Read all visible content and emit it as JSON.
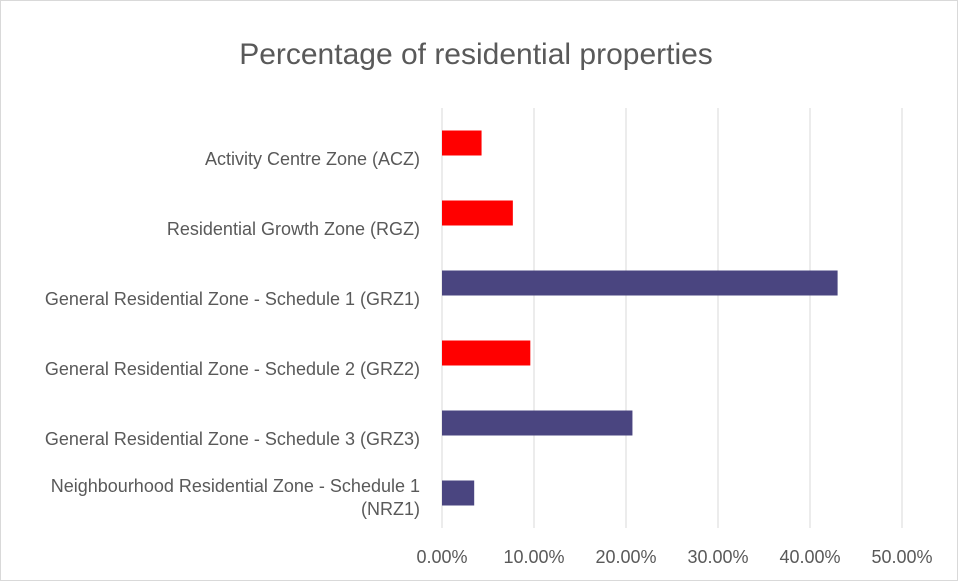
{
  "chart_data": {
    "type": "bar",
    "orientation": "horizontal",
    "title": "Percentage of residential properties",
    "categories": [
      "Activity Centre Zone (ACZ)",
      "Residential Growth Zone (RGZ)",
      "General Residential Zone - Schedule 1 (GRZ1)",
      "General Residential Zone - Schedule 2 (GRZ2)",
      "General Residential Zone - Schedule 3 (GRZ3)",
      "Neighbourhood Residential Zone - Schedule 1 (NRZ1)"
    ],
    "values": [
      4.3,
      7.7,
      43.0,
      9.6,
      20.7,
      3.5
    ],
    "colors": [
      "#ff0000",
      "#ff0000",
      "#4a4580",
      "#ff0000",
      "#4a4580",
      "#4a4580"
    ],
    "xlim": [
      0,
      50
    ],
    "xticks": [
      {
        "value": 0,
        "label": "0.00%"
      },
      {
        "value": 10,
        "label": "10.00%"
      },
      {
        "value": 20,
        "label": "20.00%"
      },
      {
        "value": 30,
        "label": "30.00%"
      },
      {
        "value": 40,
        "label": "40.00%"
      },
      {
        "value": 50,
        "label": "50.00%"
      }
    ],
    "grid": true
  }
}
